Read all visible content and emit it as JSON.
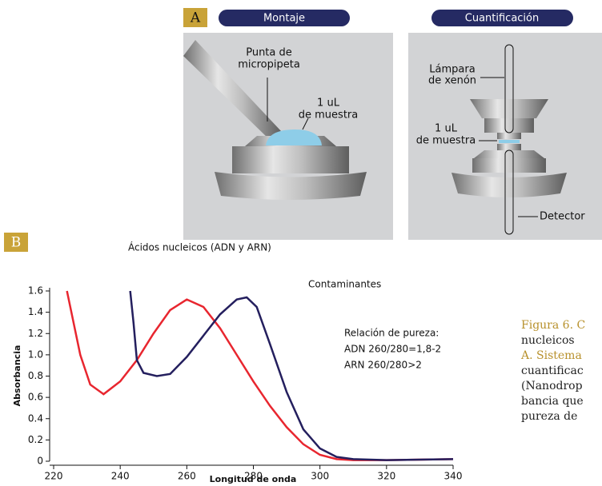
{
  "panel_a": {
    "label": "A",
    "left_title": "Montaje",
    "right_title": "Cuantificación",
    "left_labels": [
      "Punta de",
      "micropipeta",
      "1 uL",
      "de muestra"
    ],
    "right_labels": [
      "Lámpara",
      "de xenón",
      "1 uL",
      "de muestra",
      "Detector"
    ]
  },
  "panel_b": {
    "label": "B"
  },
  "chart_data": {
    "type": "line",
    "xlabel": "Longitud de onda",
    "ylabel": "Absorbancia",
    "xlim": [
      220,
      340
    ],
    "xticks": [
      220,
      240,
      260,
      280,
      300,
      320,
      340
    ],
    "ylim": [
      0,
      1.6
    ],
    "yticks": [
      0,
      0.2,
      0.4,
      0.6,
      0.8,
      {
        "value": 1,
        "label": "1.0"
      },
      1.2,
      1.4,
      1.6
    ],
    "series": [
      {
        "name": "Ácidos nucleicos (ADN y ARN)",
        "color": "#e8262f",
        "x": [
          224,
          228,
          231,
          235,
          240,
          245,
          250,
          255,
          260,
          265,
          270,
          275,
          280,
          285,
          290,
          295,
          300,
          305,
          310,
          320,
          340
        ],
        "values": [
          1.6,
          1.0,
          0.72,
          0.63,
          0.75,
          0.95,
          1.2,
          1.42,
          1.52,
          1.45,
          1.25,
          1.0,
          0.75,
          0.52,
          0.32,
          0.16,
          0.06,
          0.02,
          0.01,
          0.01,
          0.02
        ]
      },
      {
        "name": "Contaminantes",
        "color": "#241f5e",
        "x": [
          243,
          244,
          245,
          247,
          251,
          255,
          260,
          265,
          270,
          275,
          278,
          281,
          285,
          290,
          295,
          300,
          305,
          310,
          320,
          340
        ],
        "values": [
          1.6,
          1.3,
          0.95,
          0.83,
          0.8,
          0.82,
          0.98,
          1.18,
          1.38,
          1.52,
          1.54,
          1.45,
          1.1,
          0.65,
          0.3,
          0.12,
          0.04,
          0.02,
          0.01,
          0.02
        ]
      }
    ],
    "annotations": [
      "Relación de pureza:",
      "ADN 260/280=1,8-2",
      "ARN 260/280>2"
    ]
  },
  "caption": {
    "lines": [
      "Figura 6. C",
      "nucleicos",
      "A. Sistema",
      "cuantificac",
      "(Nanodrop",
      "bancia que",
      "pureza de"
    ]
  }
}
